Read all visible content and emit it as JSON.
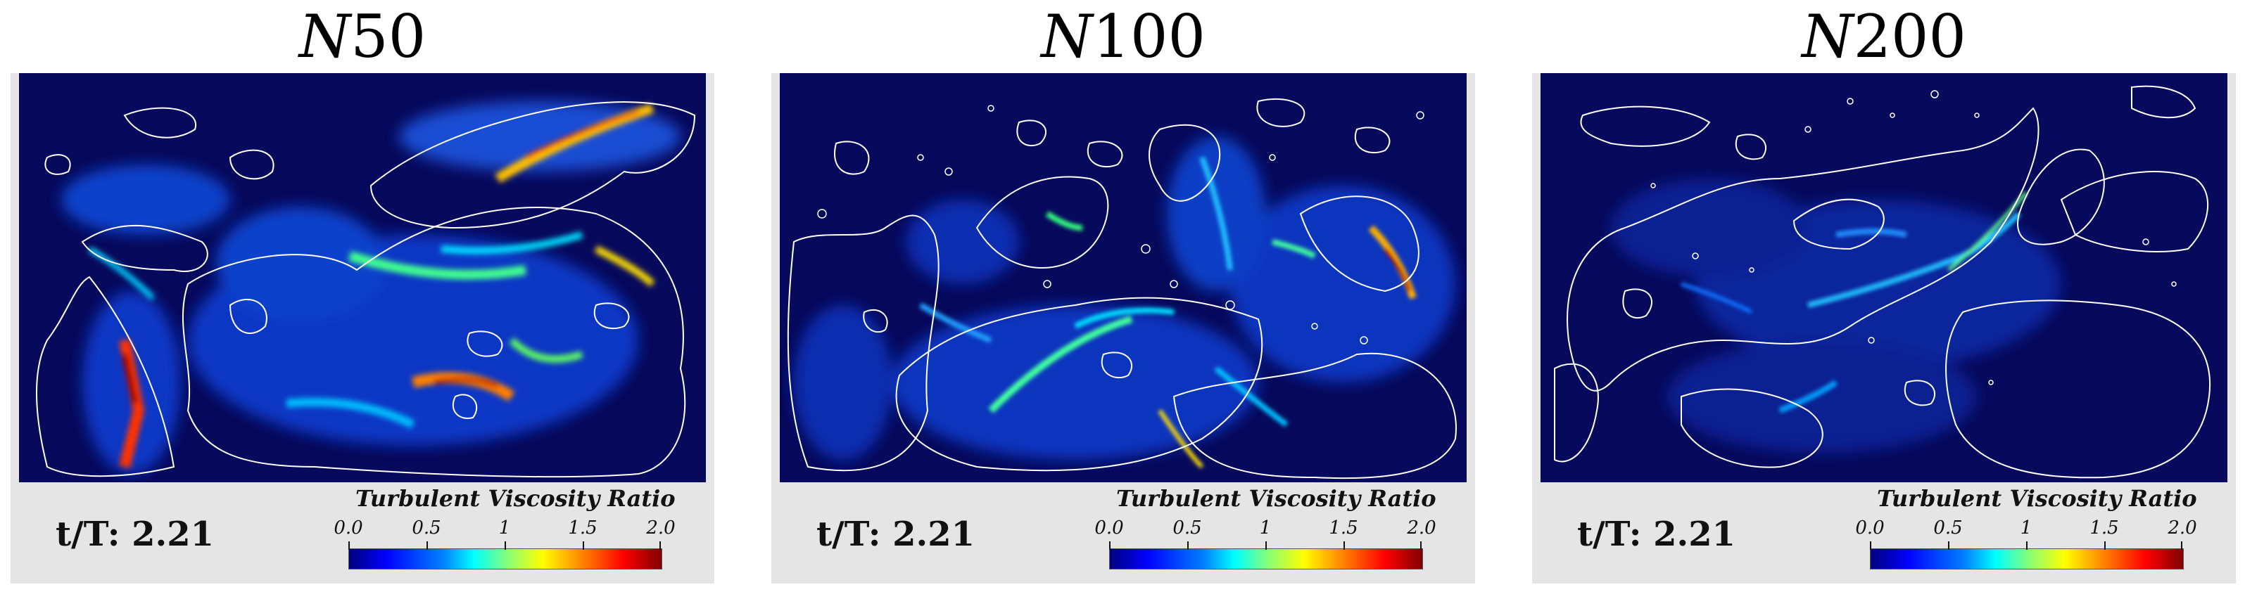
{
  "panels": [
    {
      "title_prefix": "N",
      "title_number": "50",
      "time_label": "t/T: 2.21"
    },
    {
      "title_prefix": "N",
      "title_number": "100",
      "time_label": "t/T: 2.21"
    },
    {
      "title_prefix": "N",
      "title_number": "200",
      "time_label": "t/T: 2.21"
    }
  ],
  "colorbar": {
    "title": "Turbulent Viscosity Ratio",
    "ticks": [
      "0.0",
      "0.5",
      "1",
      "1.5",
      "2.0"
    ]
  },
  "colors": {
    "background": "#07095c",
    "contour": "#ffffff",
    "frame": "#e5e5e5"
  }
}
